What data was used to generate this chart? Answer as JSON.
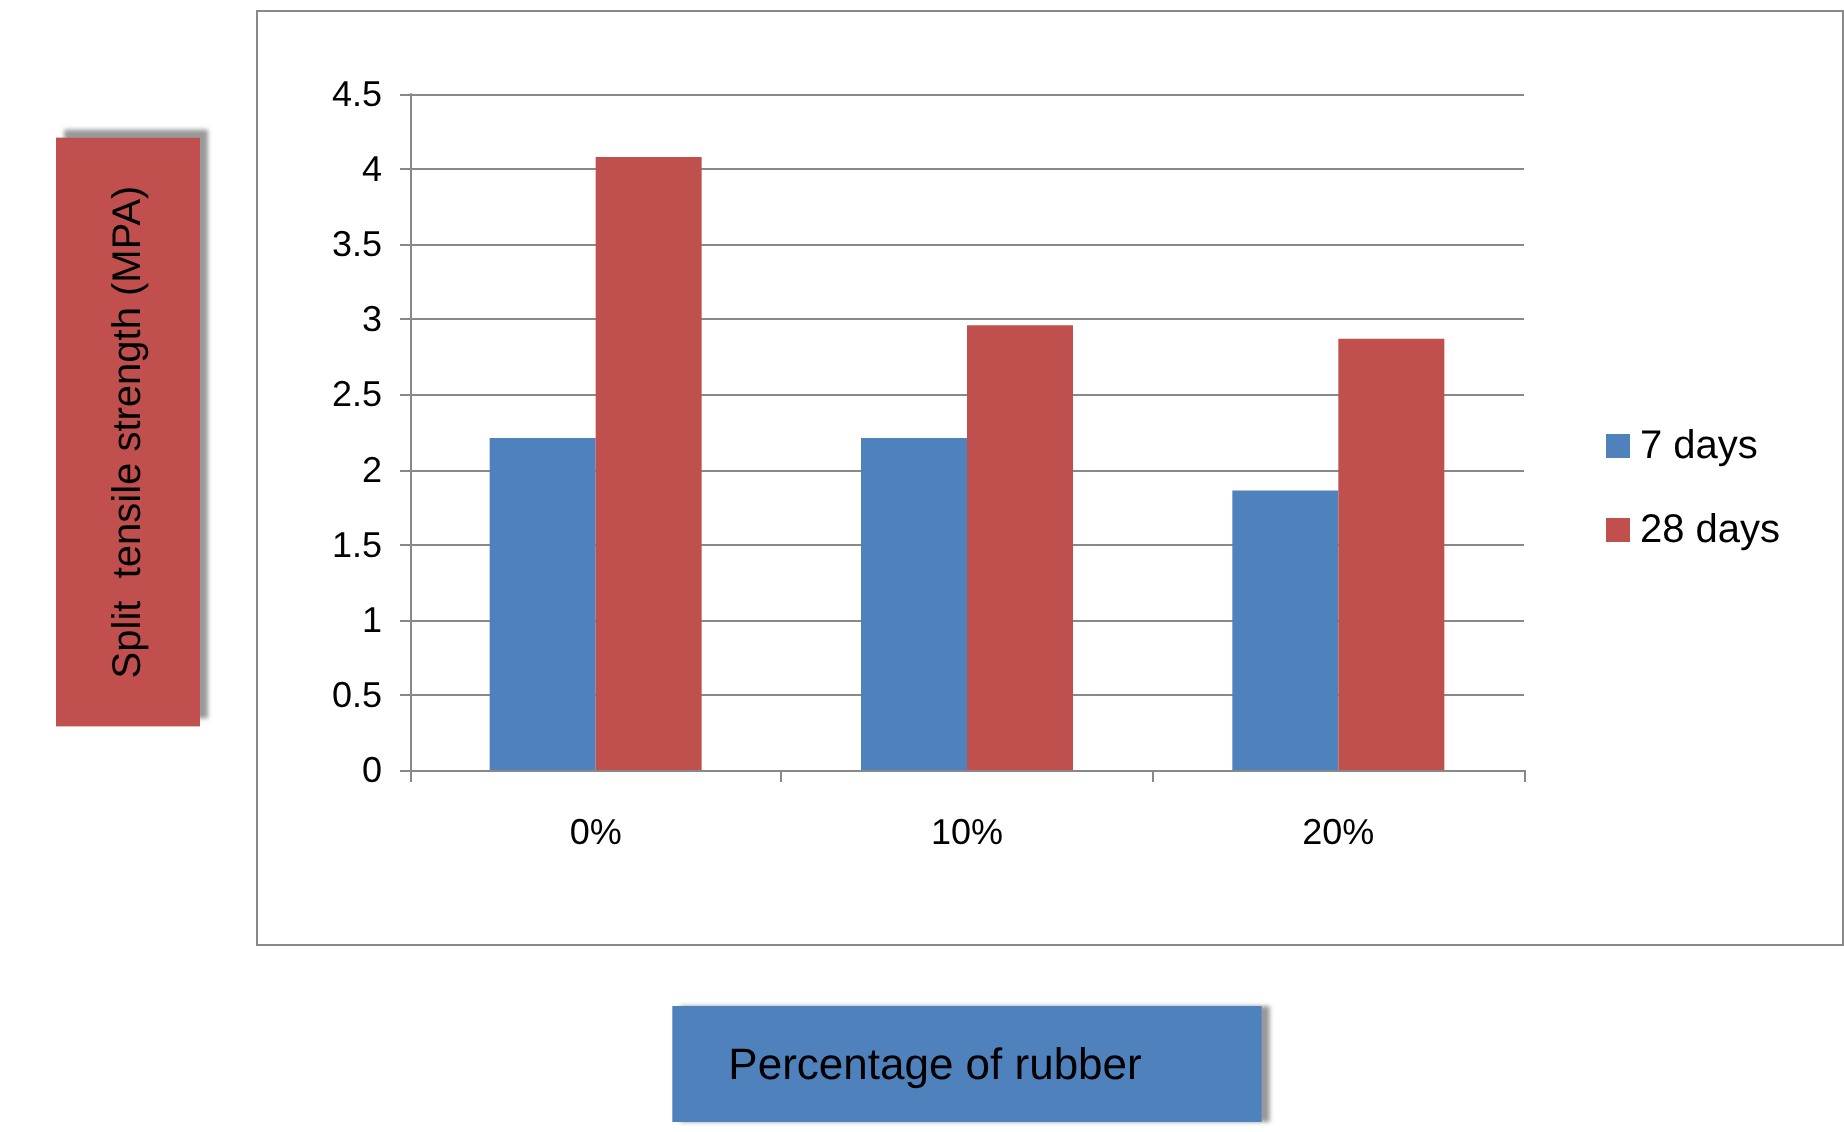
{
  "chart_data": {
    "type": "bar",
    "xlabel": "Percentage of rubber",
    "ylabel": "Split  tensile strength (MPA)",
    "categories": [
      "0%",
      "10%",
      "20%"
    ],
    "series": [
      {
        "name": "7 days",
        "color": "#4f81bd",
        "values": [
          2.21,
          2.21,
          1.86
        ]
      },
      {
        "name": "28 days",
        "color": "#c0504d",
        "values": [
          4.08,
          2.96,
          2.87
        ]
      }
    ],
    "ylim": [
      0,
      4.5
    ],
    "yticks": [
      0,
      0.5,
      1,
      1.5,
      2,
      2.5,
      3,
      3.5,
      4,
      4.5
    ],
    "grid": "y",
    "legend": "right"
  }
}
